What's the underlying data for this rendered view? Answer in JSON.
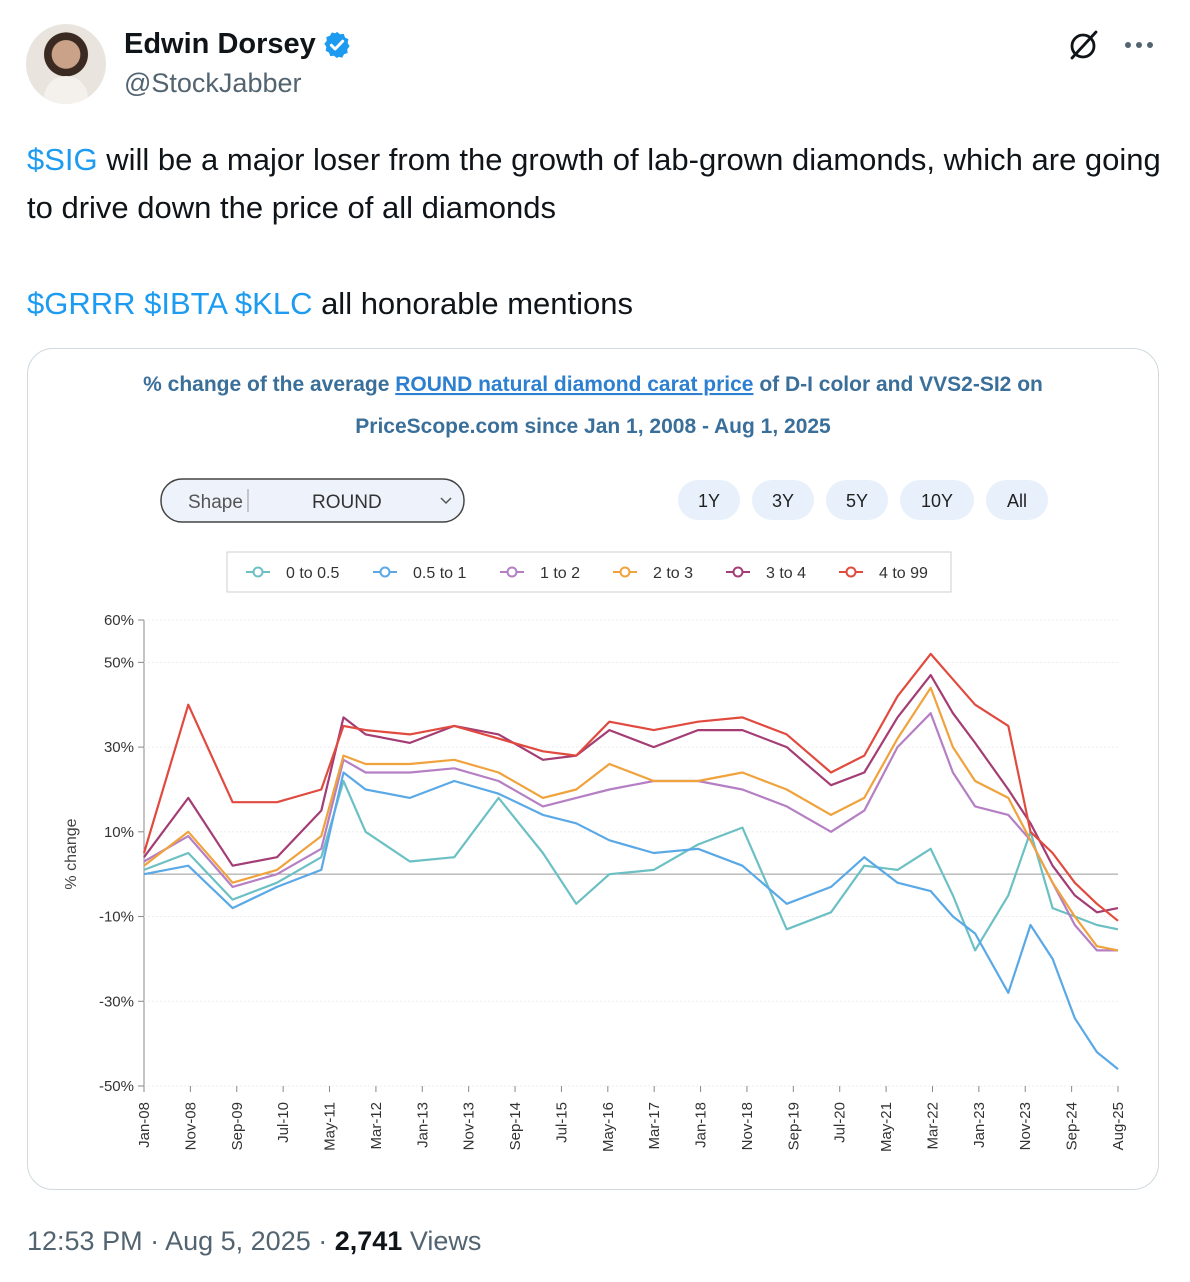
{
  "tweet": {
    "author_name": "Edwin Dorsey",
    "author_handle": "@StockJabber",
    "line1_cashtag": "$SIG",
    "line1_text": " will be a major loser from the growth of lab-grown diamonds, which are going to drive down the price of all diamonds",
    "line2_cashtags": [
      "$GRRR",
      "$IBTA",
      "$KLC"
    ],
    "line2_text": " all honorable mentions",
    "time": "12:53 PM",
    "date": "Aug 5, 2025",
    "views_count": "2,741",
    "views_label": "Views",
    "icons": [
      "verified-badge-icon",
      "grok-icon",
      "more-icon"
    ]
  },
  "chart": {
    "title_pre": "% change of the average ",
    "title_link": "ROUND natural diamond carat price",
    "title_post": " of D-I color and VVS2-SI2 on",
    "title_line2": "PriceScope.com since Jan 1, 2008 - Aug 1, 2025",
    "shape_label": "Shape",
    "shape_value": "ROUND",
    "range_buttons": [
      "1Y",
      "3Y",
      "5Y",
      "10Y",
      "All"
    ]
  },
  "chart_data": {
    "type": "line",
    "ylabel": "% change",
    "ylim": [
      -50,
      60
    ],
    "yticks": [
      "60%",
      "50%",
      "30%",
      "10%",
      "-10%",
      "-30%",
      "-50%"
    ],
    "ytick_values": [
      60,
      50,
      30,
      10,
      -10,
      -30,
      -50
    ],
    "xticks": [
      "Jan-08",
      "Nov-08",
      "Sep-09",
      "Jul-10",
      "May-11",
      "Mar-12",
      "Jan-13",
      "Nov-13",
      "Sep-14",
      "Jul-15",
      "May-16",
      "Mar-17",
      "Jan-18",
      "Nov-18",
      "Sep-19",
      "Jul-20",
      "May-21",
      "Mar-22",
      "Jan-23",
      "Nov-23",
      "Sep-24",
      "Aug-25"
    ],
    "x": [
      2008.0,
      2008.8,
      2009.6,
      2010.4,
      2011.2,
      2011.6,
      2012.0,
      2012.8,
      2013.6,
      2014.4,
      2015.2,
      2015.8,
      2016.4,
      2017.2,
      2018.0,
      2018.8,
      2019.6,
      2020.4,
      2021.0,
      2021.6,
      2022.2,
      2022.6,
      2023.0,
      2023.6,
      2024.0,
      2024.4,
      2024.8,
      2025.2,
      2025.58
    ],
    "legend": "top",
    "grid": true,
    "series": [
      {
        "name": "0 to 0.5",
        "color": "#6cc0c4",
        "values": [
          1,
          5,
          -6,
          -2,
          4,
          22,
          10,
          3,
          4,
          18,
          5,
          -7,
          0,
          1,
          7,
          11,
          -13,
          -9,
          2,
          1,
          6,
          -5,
          -18,
          -5,
          10,
          -8,
          -10,
          -12,
          -13
        ]
      },
      {
        "name": "0.5 to 1",
        "color": "#5aa9e6",
        "values": [
          0,
          2,
          -8,
          -3,
          1,
          24,
          20,
          18,
          22,
          19,
          14,
          12,
          8,
          5,
          6,
          2,
          -7,
          -3,
          4,
          -2,
          -4,
          -10,
          -14,
          -28,
          -12,
          -20,
          -34,
          -42,
          -46
        ]
      },
      {
        "name": "1 to 2",
        "color": "#b57fc4",
        "values": [
          3,
          9,
          -3,
          0,
          6,
          27,
          24,
          24,
          25,
          22,
          16,
          18,
          20,
          22,
          22,
          20,
          16,
          10,
          15,
          30,
          38,
          24,
          16,
          14,
          8,
          -2,
          -12,
          -18,
          -18
        ]
      },
      {
        "name": "2 to 3",
        "color": "#f0a23c",
        "values": [
          2,
          10,
          -2,
          1,
          9,
          28,
          26,
          26,
          27,
          24,
          18,
          20,
          26,
          22,
          22,
          24,
          20,
          14,
          18,
          32,
          44,
          30,
          22,
          18,
          8,
          -2,
          -10,
          -17,
          -18
        ]
      },
      {
        "name": "3 to 4",
        "color": "#a33d74",
        "values": [
          4,
          18,
          2,
          4,
          15,
          37,
          33,
          31,
          35,
          33,
          27,
          28,
          34,
          30,
          34,
          34,
          30,
          21,
          24,
          37,
          47,
          38,
          31,
          20,
          12,
          2,
          -5,
          -9,
          -8
        ]
      },
      {
        "name": "4 to 99",
        "color": "#e04a3f",
        "values": [
          5,
          40,
          17,
          17,
          20,
          35,
          34,
          33,
          35,
          32,
          29,
          28,
          36,
          34,
          36,
          37,
          33,
          24,
          28,
          42,
          52,
          46,
          40,
          35,
          10,
          5,
          -2,
          -7,
          -11
        ]
      }
    ]
  }
}
